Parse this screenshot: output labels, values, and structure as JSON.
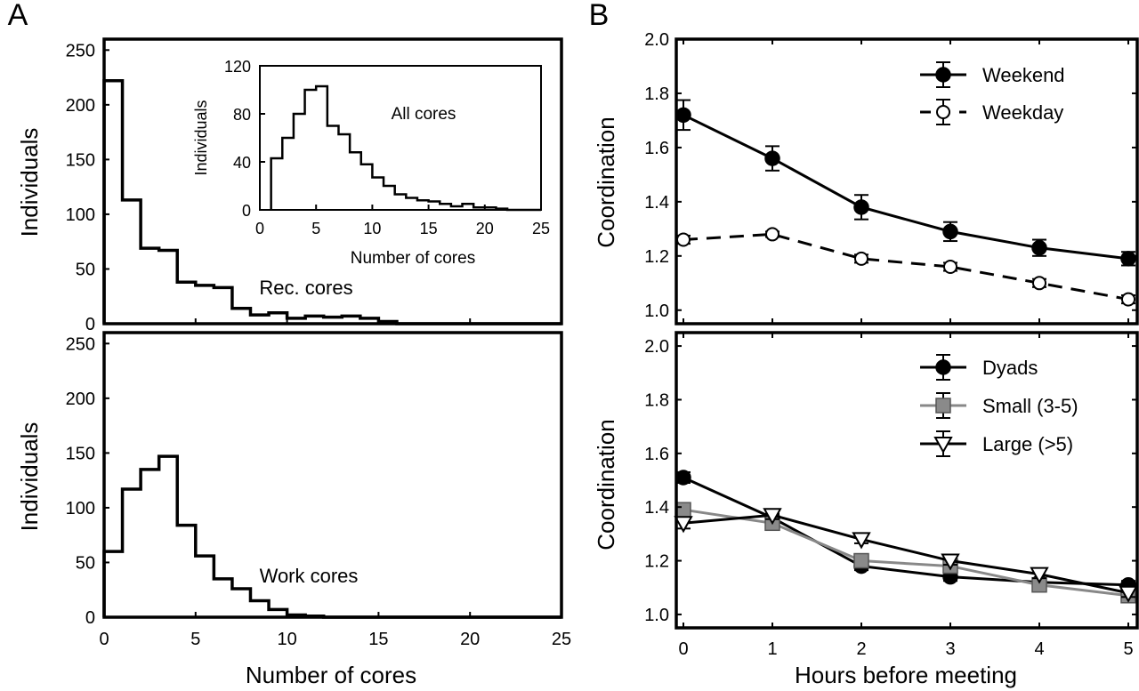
{
  "chart_data": [
    {
      "id": "A_top",
      "type": "histogram",
      "panel_letter": "A",
      "ylabel": "Individuals",
      "annotation": "Rec. cores",
      "xlim": [
        0,
        25
      ],
      "ylim": [
        0,
        260
      ],
      "xticks": [
        "0",
        "5",
        "10",
        "15",
        "20",
        "25"
      ],
      "yticks": [
        "0",
        "50",
        "100",
        "150",
        "200",
        "250"
      ],
      "bin_width": 1,
      "x_start": 0,
      "values": [
        222,
        113,
        69,
        67,
        38,
        35,
        33,
        14,
        8,
        10,
        5,
        7,
        6,
        7,
        5,
        2,
        0,
        0,
        0,
        0,
        0,
        0,
        0,
        0,
        0
      ]
    },
    {
      "id": "A_inset",
      "type": "histogram",
      "title": "All cores",
      "xlabel": "Number of cores",
      "ylabel": "Individuals",
      "xlim": [
        0,
        25
      ],
      "ylim": [
        0,
        120
      ],
      "xticks": [
        "0",
        "5",
        "10",
        "15",
        "20",
        "25"
      ],
      "yticks": [
        "0",
        "40",
        "80",
        "120"
      ],
      "bin_width": 1,
      "x_start": 1,
      "values": [
        43,
        60,
        80,
        100,
        103,
        70,
        63,
        48,
        38,
        27,
        20,
        13,
        10,
        8,
        7,
        5,
        3,
        5,
        2,
        2,
        1,
        0,
        0,
        0
      ]
    },
    {
      "id": "A_bottom",
      "type": "histogram",
      "ylabel": "Individuals",
      "xlabel": "Number of cores",
      "annotation": "Work cores",
      "xlim": [
        0,
        25
      ],
      "ylim": [
        0,
        260
      ],
      "xticks": [
        "0",
        "5",
        "10",
        "15",
        "20",
        "25"
      ],
      "yticks": [
        "0",
        "50",
        "100",
        "150",
        "200",
        "250"
      ],
      "bin_width": 1,
      "x_start": 0,
      "values": [
        60,
        117,
        135,
        147,
        84,
        56,
        35,
        26,
        15,
        7,
        2,
        1,
        0,
        0,
        0,
        0,
        0,
        0,
        0,
        0,
        0,
        0,
        0,
        0,
        0
      ]
    },
    {
      "id": "B_top",
      "type": "line",
      "panel_letter": "B",
      "ylabel": "Coordination",
      "xlim": [
        0,
        5
      ],
      "ylim": [
        0.95,
        2.0
      ],
      "xticks": [
        "0",
        "1",
        "2",
        "3",
        "4",
        "5"
      ],
      "yticks": [
        "1.0",
        "1.2",
        "1.4",
        "1.6",
        "1.8",
        "2.0"
      ],
      "x": [
        0,
        1,
        2,
        3,
        4,
        5
      ],
      "legend_position": "top-right",
      "series": [
        {
          "name": "Weekend",
          "marker": "filled-circle",
          "line": "solid",
          "color": "#000000",
          "values": [
            1.72,
            1.56,
            1.38,
            1.29,
            1.23,
            1.19
          ],
          "err": [
            0.055,
            0.045,
            0.045,
            0.035,
            0.03,
            0.025
          ]
        },
        {
          "name": "Weekday",
          "marker": "open-circle",
          "line": "dashed",
          "color": "#000000",
          "values": [
            1.26,
            1.28,
            1.19,
            1.16,
            1.1,
            1.04
          ],
          "err": [
            0.015,
            0.01,
            0.015,
            0.015,
            0.015,
            0.015
          ]
        }
      ]
    },
    {
      "id": "B_bottom",
      "type": "line",
      "ylabel": "Coordination",
      "xlabel": "Hours before meeting",
      "xlim": [
        0,
        5
      ],
      "ylim": [
        0.95,
        2.0
      ],
      "xticks": [
        "0",
        "1",
        "2",
        "3",
        "4",
        "5"
      ],
      "yticks": [
        "1.0",
        "1.2",
        "1.4",
        "1.6",
        "1.8",
        "2.0"
      ],
      "x": [
        0,
        1,
        2,
        3,
        4,
        5
      ],
      "legend_position": "top-right",
      "series": [
        {
          "name": "Dyads",
          "marker": "filled-circle",
          "line": "solid",
          "color": "#000000",
          "values": [
            1.51,
            1.36,
            1.18,
            1.14,
            1.12,
            1.11
          ],
          "err": [
            0.02,
            0.015,
            0.015,
            0.015,
            0.015,
            0.015
          ]
        },
        {
          "name": "Small (3-5)",
          "marker": "gray-square",
          "line": "solid",
          "color": "#888888",
          "values": [
            1.39,
            1.34,
            1.2,
            1.18,
            1.11,
            1.07
          ],
          "err": [
            0.02,
            0.015,
            0.015,
            0.015,
            0.015,
            0.015
          ]
        },
        {
          "name": "Large (>5)",
          "marker": "open-triangle-down",
          "line": "solid",
          "color": "#000000",
          "values": [
            1.34,
            1.37,
            1.28,
            1.2,
            1.15,
            1.08
          ],
          "err": [
            0.02,
            0.015,
            0.015,
            0.015,
            0.015,
            0.015
          ]
        }
      ]
    }
  ]
}
